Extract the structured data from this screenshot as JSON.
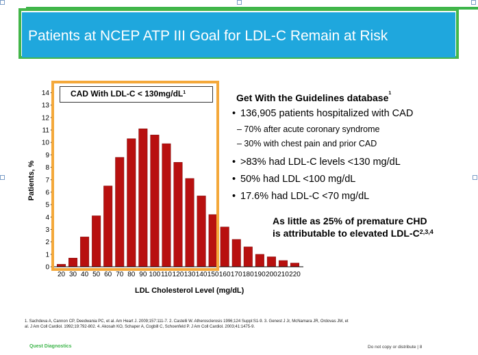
{
  "slide": {
    "title": "Patients at NCEP ATP III Goal for LDL-C Remain at Risk",
    "right_panel": {
      "heading": "Get With the Guidelines database",
      "heading_sup": "1",
      "bullets": [
        "136,905 patients hospitalized with CAD",
        ">83% had LDL-C levels <130 mg/dL",
        "50% had LDL <100 mg/dL",
        "17.6% had LDL-C <70 mg/dL"
      ],
      "sub_bullets": [
        "– 70% after acute coronary syndrome",
        "– 30% with chest pain and prior CAD"
      ],
      "bullet_symbol": "•",
      "conclusion_line1": "As little as 25% of premature CHD",
      "conclusion_line2": "is attributable to elevated LDL-C",
      "conclusion_sup": "2,3,4"
    },
    "references_line1": "1. Sachdeva A, Cannon CP, Deedwania PC, et al. Am Heart J. 2009;157:111-7. 2. Castelli W. Atherosclerosis 1996;124 Suppl:S1-9. 3. Genest J Jr, McNamara JR, Ordovas JM, et",
    "references_line2": "al. J Am Coll Cardiol. 1992;19:792-802. 4. Akosah KO, Schaper A, Cogbill C, Schoenfeld P. J Am Coll Cardiol. 2003;41:1475-9.",
    "footer_left": "Quest Diagnostics",
    "footer_right": "Do not copy or distribute  |  8"
  },
  "chart_data": {
    "type": "bar",
    "title": "",
    "highlight_label": "CAD With LDL-C < 130mg/dL",
    "highlight_sup": "1",
    "xlabel": "LDL Cholesterol Level (mg/dL)",
    "ylabel": "Patients, %",
    "ylim": [
      0,
      14
    ],
    "yticks": [
      "0",
      "1",
      "2",
      "3",
      "4",
      "5",
      "6",
      "7",
      "8",
      "9",
      "10",
      "11",
      "12",
      "13",
      "14"
    ],
    "categories": [
      "20",
      "30",
      "40",
      "50",
      "60",
      "70",
      "80",
      "90",
      "100",
      "110",
      "120",
      "130",
      "140",
      "150",
      "160",
      "170",
      "180",
      "190",
      "200",
      "210",
      "220"
    ],
    "values": [
      0.2,
      0.7,
      2.4,
      4.1,
      6.5,
      8.8,
      10.3,
      11.1,
      10.6,
      9.9,
      8.4,
      7.1,
      5.7,
      4.2,
      3.2,
      2.2,
      1.6,
      1.0,
      0.8,
      0.5,
      0.3
    ],
    "bar_color": "#b8100f",
    "highlight_range": [
      "20",
      "130"
    ],
    "highlight_color": "#f4a83a"
  }
}
